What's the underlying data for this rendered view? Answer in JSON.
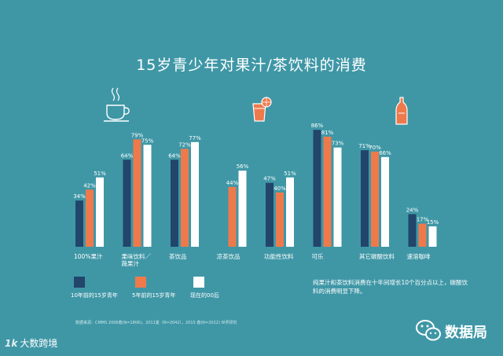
{
  "title": "15岁青少年对果汁/茶饮料的消费",
  "note": "纯果汁和茶饮料消费在十年间增长10个百分点以上，碳酸饮料的消费明显下降。",
  "source": "数据来源：CMMS 2006春(N=1806)，2011夏（N=2042），2015 春(N=2022) 世界研究",
  "watermark_right": "数据局",
  "watermark_left": "大数跨境",
  "watermark_left_mark": "1k",
  "colors": {
    "background": "#3f97a6",
    "series": [
      "#22456b",
      "#ee7a4c",
      "#ffffff"
    ]
  },
  "icons": [
    "coffee-cup-icon",
    "juice-glass-icon",
    "soda-bottle-icon"
  ],
  "chart_data": {
    "type": "bar",
    "title": "15岁青少年对果汁/茶饮料的消费",
    "categories": [
      "100%果汁",
      "果味饮料／蔬果汁",
      "茶饮品",
      "凉茶饮品",
      "功能性饮料",
      "可乐",
      "其它碳酸饮料",
      "速溶咖啡"
    ],
    "series": [
      {
        "name": "10年前的15岁青年",
        "values": [
          34,
          64,
          64,
          null,
          47,
          86,
          71,
          24
        ]
      },
      {
        "name": "5年前的15岁青年",
        "values": [
          42,
          79,
          72,
          44,
          40,
          81,
          70,
          17
        ]
      },
      {
        "name": "现在的00后",
        "values": [
          51,
          75,
          77,
          56,
          51,
          73,
          66,
          15
        ]
      }
    ],
    "value_suffix": "%",
    "ylim": [
      0,
      100
    ],
    "grid": false,
    "legend": "bottom-left"
  }
}
